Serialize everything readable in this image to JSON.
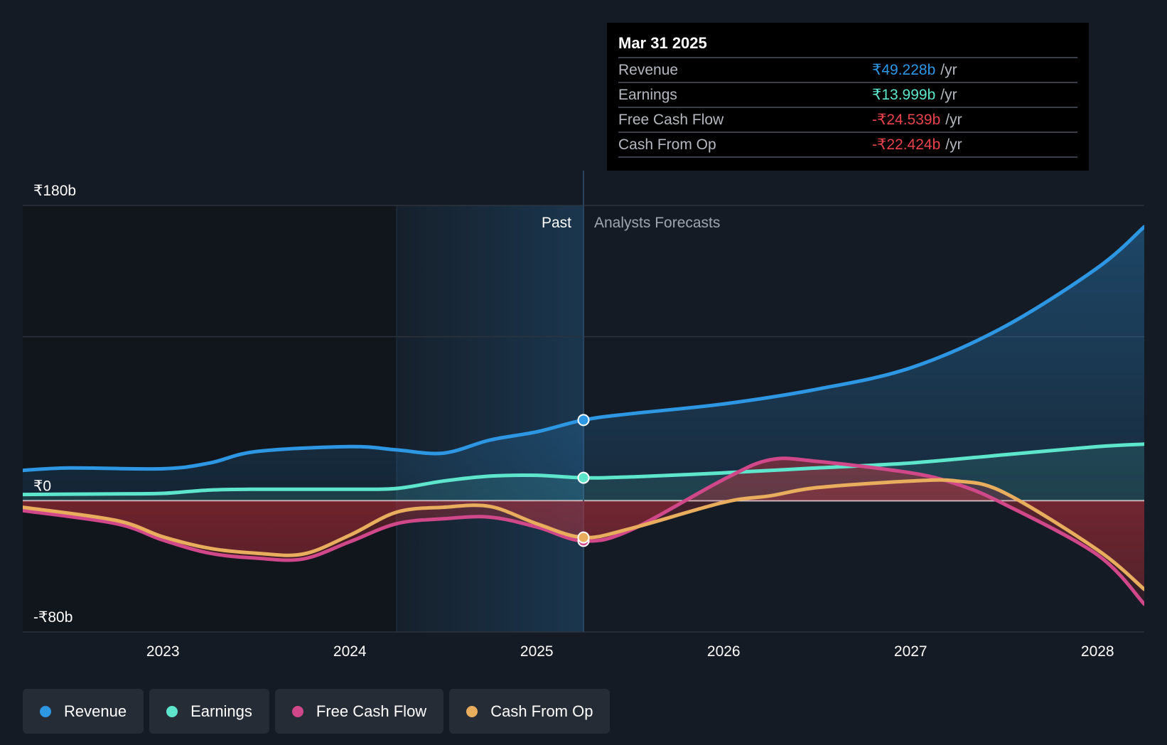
{
  "tooltip": {
    "date": "Mar 31 2025",
    "rows": [
      {
        "label": "Revenue",
        "value": "₹49.228b",
        "unit": "/yr",
        "color": "#2d97e4"
      },
      {
        "label": "Earnings",
        "value": "₹13.999b",
        "unit": "/yr",
        "color": "#5ee6cd"
      },
      {
        "label": "Free Cash Flow",
        "value": "-₹24.539b",
        "unit": "/yr",
        "color": "#e8424c"
      },
      {
        "label": "Cash From Op",
        "value": "-₹22.424b",
        "unit": "/yr",
        "color": "#e8424c"
      }
    ]
  },
  "period_labels": {
    "past": "Past",
    "forecast": "Analysts Forecasts"
  },
  "legend": [
    {
      "label": "Revenue",
      "color": "#2d97e4"
    },
    {
      "label": "Earnings",
      "color": "#5ee6cd"
    },
    {
      "label": "Free Cash Flow",
      "color": "#d0488a"
    },
    {
      "label": "Cash From Op",
      "color": "#e9ad5e"
    }
  ],
  "chart_data": {
    "type": "line",
    "x_range": [
      2022.25,
      2028.25
    ],
    "ylim": [
      -80,
      180
    ],
    "y_ticks": [
      {
        "value": 180,
        "label": "₹180b"
      },
      {
        "value": 0,
        "label": "₹0"
      },
      {
        "value": -80,
        "label": "-₹80b"
      }
    ],
    "gridlines": [
      180,
      100,
      0,
      -80
    ],
    "x_ticks": [
      {
        "value": 2023,
        "label": "2023"
      },
      {
        "value": 2024,
        "label": "2024"
      },
      {
        "value": 2025,
        "label": "2025"
      },
      {
        "value": 2026,
        "label": "2026"
      },
      {
        "value": 2027,
        "label": "2027"
      },
      {
        "value": 2028,
        "label": "2028"
      }
    ],
    "past_highlight_start": 2024.25,
    "forecast_start": 2025.25,
    "series": [
      {
        "name": "Revenue",
        "color": "#2d97e4",
        "points": [
          [
            2022.25,
            18.5
          ],
          [
            2022.5,
            20
          ],
          [
            2023,
            19.5
          ],
          [
            2023.25,
            23
          ],
          [
            2023.5,
            30
          ],
          [
            2024,
            33
          ],
          [
            2024.25,
            31
          ],
          [
            2024.5,
            29
          ],
          [
            2024.75,
            37
          ],
          [
            2025,
            42
          ],
          [
            2025.25,
            49.2
          ],
          [
            2025.5,
            53
          ],
          [
            2026,
            59
          ],
          [
            2026.5,
            68
          ],
          [
            2027,
            81
          ],
          [
            2027.5,
            106
          ],
          [
            2028,
            142
          ],
          [
            2028.25,
            167
          ]
        ]
      },
      {
        "name": "Earnings",
        "color": "#5ee6cd",
        "points": [
          [
            2022.25,
            3.8
          ],
          [
            2022.75,
            4.2
          ],
          [
            2023,
            4.5
          ],
          [
            2023.25,
            6.5
          ],
          [
            2023.5,
            7
          ],
          [
            2024,
            7
          ],
          [
            2024.25,
            7.5
          ],
          [
            2024.5,
            12
          ],
          [
            2024.75,
            15
          ],
          [
            2025,
            15.5
          ],
          [
            2025.25,
            14
          ],
          [
            2025.5,
            14.5
          ],
          [
            2026,
            17
          ],
          [
            2026.5,
            20
          ],
          [
            2027,
            23
          ],
          [
            2027.5,
            28
          ],
          [
            2028,
            33
          ],
          [
            2028.25,
            34.5
          ]
        ]
      },
      {
        "name": "Free Cash Flow",
        "color": "#d0488a",
        "points": [
          [
            2022.25,
            -6
          ],
          [
            2022.75,
            -14
          ],
          [
            2023,
            -24
          ],
          [
            2023.25,
            -32
          ],
          [
            2023.5,
            -35
          ],
          [
            2023.75,
            -35.5
          ],
          [
            2024,
            -25
          ],
          [
            2024.25,
            -14
          ],
          [
            2024.5,
            -11
          ],
          [
            2024.75,
            -10
          ],
          [
            2025,
            -16
          ],
          [
            2025.25,
            -24.5
          ],
          [
            2025.5,
            -18
          ],
          [
            2026,
            13
          ],
          [
            2026.25,
            25
          ],
          [
            2026.5,
            24
          ],
          [
            2027,
            17
          ],
          [
            2027.25,
            10
          ],
          [
            2027.5,
            -2
          ],
          [
            2028,
            -33
          ],
          [
            2028.25,
            -63
          ]
        ]
      },
      {
        "name": "Cash From Op",
        "color": "#e9ad5e",
        "points": [
          [
            2022.25,
            -4
          ],
          [
            2022.75,
            -12
          ],
          [
            2023,
            -22
          ],
          [
            2023.25,
            -29
          ],
          [
            2023.5,
            -32
          ],
          [
            2023.75,
            -32.5
          ],
          [
            2024,
            -21
          ],
          [
            2024.25,
            -7
          ],
          [
            2024.5,
            -4
          ],
          [
            2024.75,
            -3.5
          ],
          [
            2025,
            -14
          ],
          [
            2025.25,
            -22.4
          ],
          [
            2025.5,
            -17
          ],
          [
            2026,
            -1
          ],
          [
            2026.25,
            3
          ],
          [
            2026.5,
            8
          ],
          [
            2027,
            12
          ],
          [
            2027.25,
            12
          ],
          [
            2027.5,
            5
          ],
          [
            2028,
            -30
          ],
          [
            2028.25,
            -54
          ]
        ]
      }
    ]
  }
}
